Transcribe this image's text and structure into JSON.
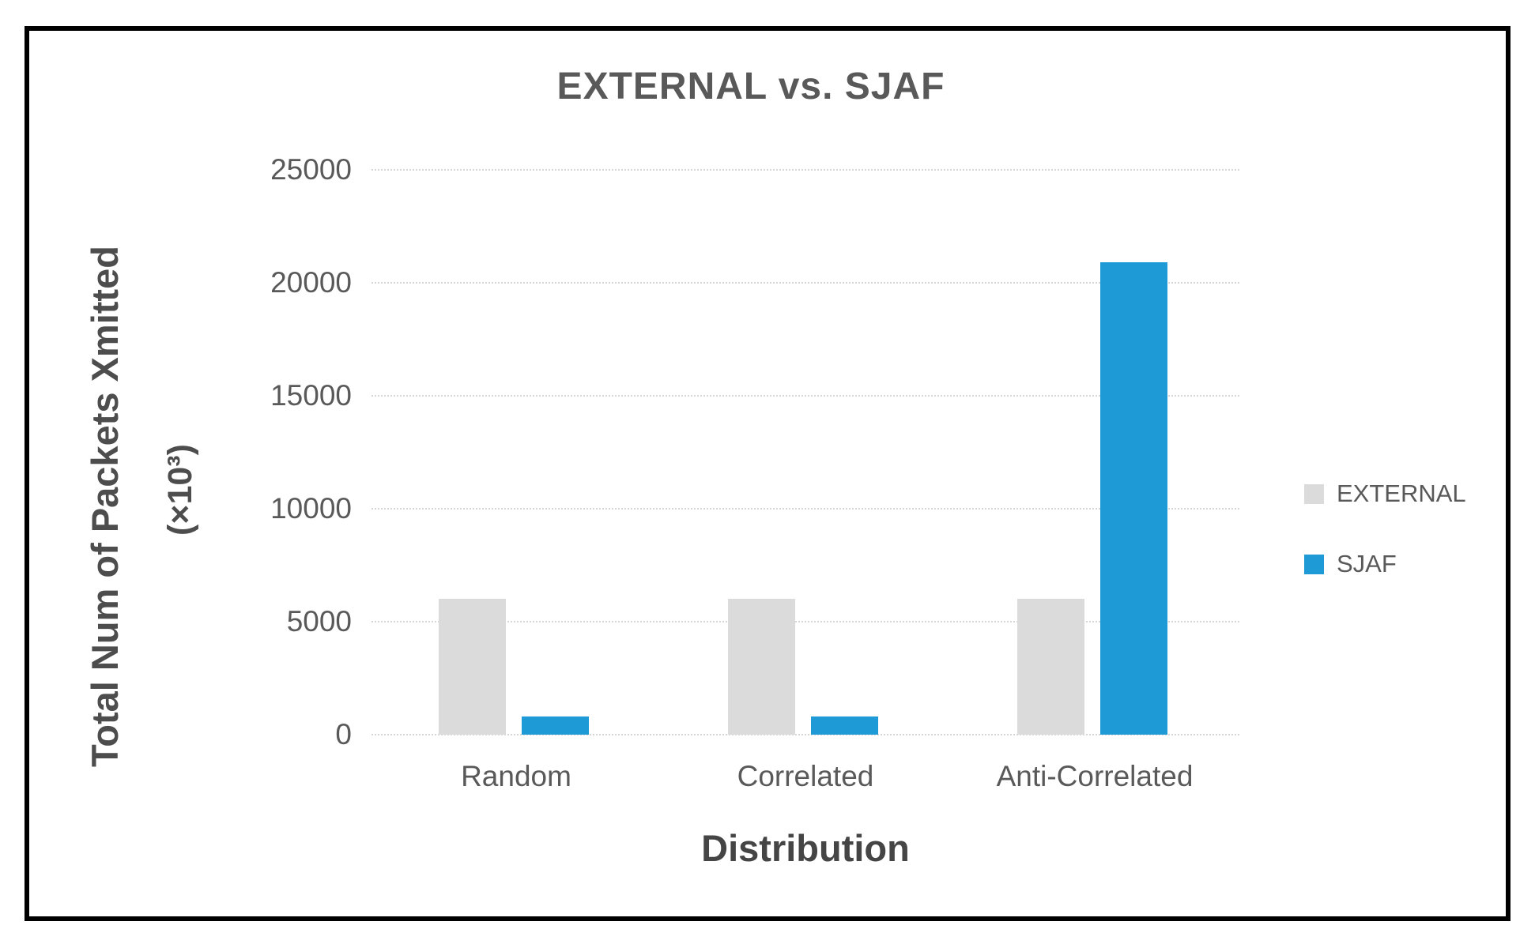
{
  "chart_data": {
    "type": "bar",
    "title": "EXTERNAL vs. SJAF",
    "categories": [
      "Random",
      "Correlated",
      "Anti-Correlated"
    ],
    "series": [
      {
        "name": "EXTERNAL",
        "color": "#dbdbdb",
        "values": [
          6000,
          6000,
          6000
        ]
      },
      {
        "name": "SJAF",
        "color": "#1e9ad6",
        "values": [
          800,
          800,
          20900
        ]
      }
    ],
    "xlabel": "Distribution",
    "ylabel": "Total Num of Packets Xmitted (×10³)",
    "ylabel_line1": "Total Num of Packets Xmitted",
    "ylabel_line2": "(×10³)",
    "ylim": [
      0,
      25000
    ],
    "yticks": [
      0,
      5000,
      10000,
      15000,
      20000,
      25000
    ],
    "grid": true,
    "legend_position": "right",
    "text_color": "#595959",
    "frame_border_color": "#000000"
  }
}
